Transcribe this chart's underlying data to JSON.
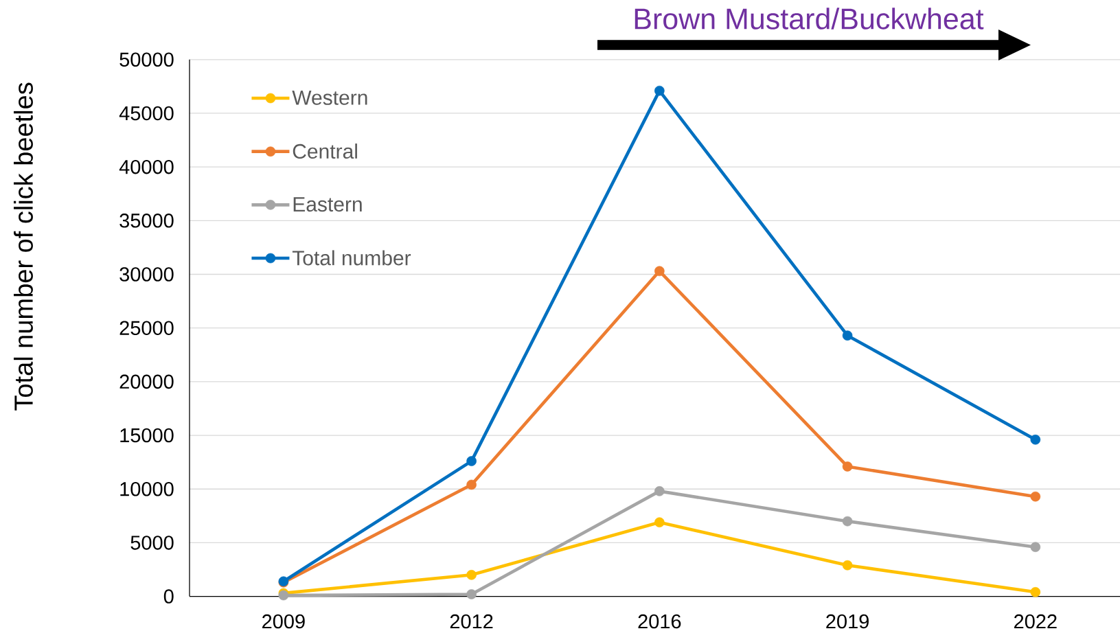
{
  "chart_data": {
    "type": "line",
    "ylabel": "Total number of click beetles",
    "annotations": [
      "Brown Mustard/Buckwheat"
    ],
    "categories": [
      "2009",
      "2012",
      "2016",
      "2019",
      "2022"
    ],
    "series": [
      {
        "name": "Western",
        "color": "#ffc000",
        "values": [
          300,
          2000,
          6900,
          2900,
          400
        ]
      },
      {
        "name": "Central",
        "color": "#ed7d31",
        "values": [
          1300,
          10400,
          30300,
          12100,
          9300
        ]
      },
      {
        "name": "Eastern",
        "color": "#a5a5a5",
        "values": [
          100,
          200,
          9800,
          7000,
          4600
        ]
      },
      {
        "name": "Total number",
        "color": "#0070c0",
        "values": [
          1400,
          12600,
          47100,
          24300,
          14600
        ]
      }
    ],
    "ylim": [
      0,
      50000
    ],
    "yticks": [
      0,
      5000,
      10000,
      15000,
      20000,
      25000,
      30000,
      35000,
      40000,
      45000,
      50000
    ],
    "grid": "y",
    "legend": "top left",
    "marker": "circle",
    "line_style": "solid"
  }
}
